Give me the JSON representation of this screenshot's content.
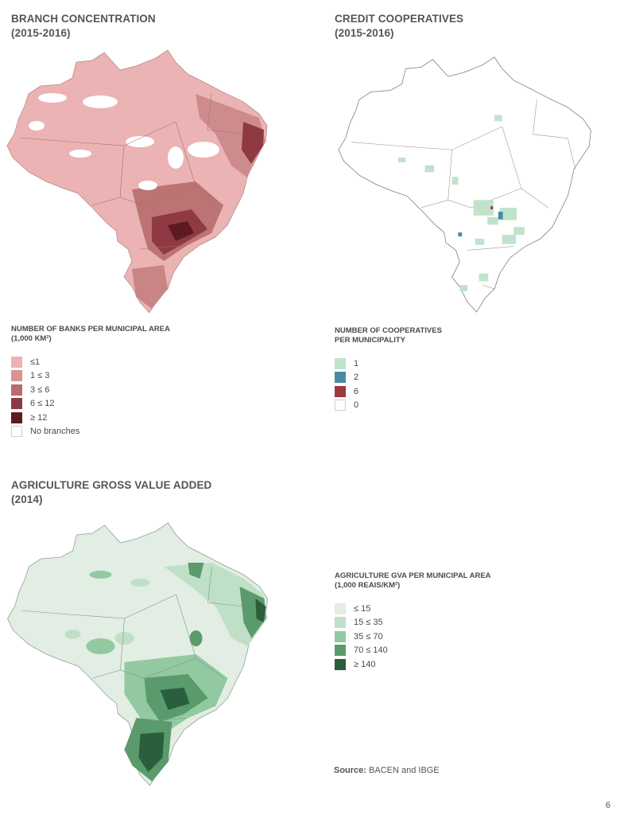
{
  "maps": [
    {
      "title_line1": "BRANCH CONCENTRATION",
      "title_line2": "(2015-2016)",
      "legend_title_line1": "NUMBER OF BANKS PER MUNICIPAL AREA",
      "legend_title_line2": "(1,000 KM²)",
      "legend": [
        {
          "label": "≤1",
          "color": "#ebb3b3"
        },
        {
          "label": "1 ≤ 3",
          "color": "#d99393"
        },
        {
          "label": "3 ≤ 6",
          "color": "#b86a6c"
        },
        {
          "label": "6 ≤ 12",
          "color": "#8f3a42"
        },
        {
          "label": "≥ 12",
          "color": "#5e1a22"
        },
        {
          "label": "No branches",
          "color": "#ffffff"
        }
      ]
    },
    {
      "title_line1": "CREDIT COOPERATIVES",
      "title_line2": "(2015-2016)",
      "legend_title_line1": "NUMBER OF COOPERATIVES",
      "legend_title_line2": "PER MUNICIPALITY",
      "legend": [
        {
          "label": "1",
          "color": "#bfe3cb"
        },
        {
          "label": "2",
          "color": "#4a8aa0"
        },
        {
          "label": "6",
          "color": "#9b3a40"
        },
        {
          "label": "0",
          "color": "#ffffff"
        }
      ]
    },
    {
      "title_line1": "AGRICULTURE GROSS VALUE ADDED",
      "title_line2": "(2014)",
      "legend_title_line1": "AGRICULTURE GVA PER MUNICIPAL AREA",
      "legend_title_line2": "(1,000 REAIS/KM²)",
      "legend": [
        {
          "label": "≤ 15",
          "color": "#e2ede3"
        },
        {
          "label": "15 ≤ 35",
          "color": "#bfe0c6"
        },
        {
          "label": "35 ≤ 70",
          "color": "#92c9a1"
        },
        {
          "label": "70 ≤ 140",
          "color": "#5a9a6c"
        },
        {
          "label": "≥ 140",
          "color": "#2b5e3d"
        }
      ]
    }
  ],
  "source": {
    "label": "Source:",
    "text": "BACEN and IBGE"
  },
  "page_number": "6"
}
